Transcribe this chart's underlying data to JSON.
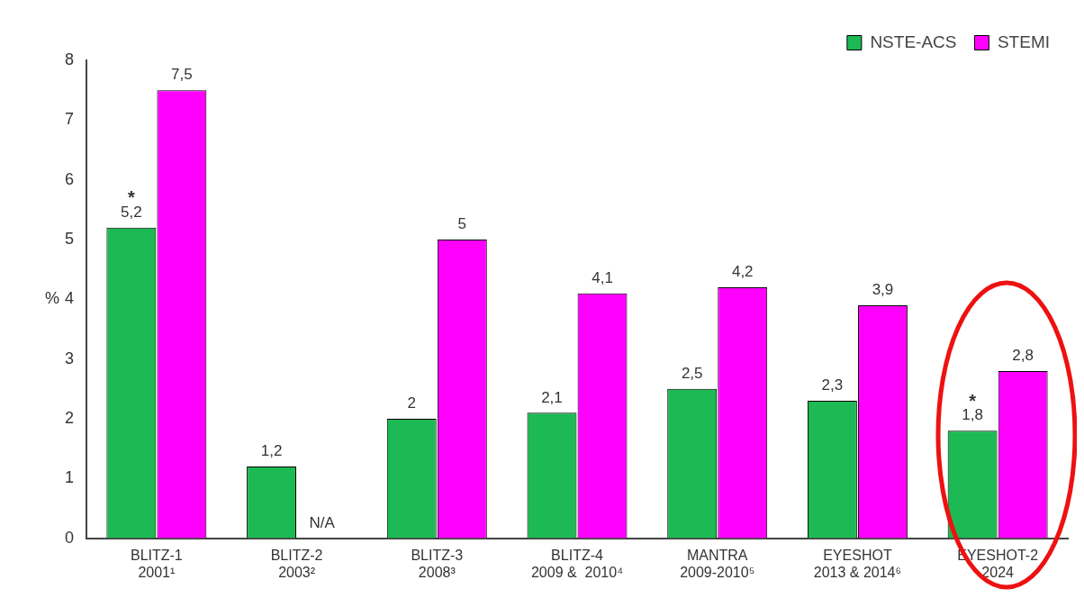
{
  "chart_data": {
    "type": "bar",
    "ylabel": "%",
    "categories": [
      "BLITZ-1\n2001¹",
      "BLITZ-2\n2003²",
      "BLITZ-3\n2008³",
      "BLITZ-4\n2009 &  2010⁴",
      "MANTRA\n2009-2010⁵",
      "EYESHOT\n2013 & 2014⁶",
      "EYESHOT-2\n2024"
    ],
    "series": [
      {
        "name": "NSTE-ACS",
        "color": "#1db954",
        "values": [
          5.2,
          1.2,
          2,
          2.1,
          2.5,
          2.3,
          1.8
        ],
        "value_labels": [
          "5,2",
          "1,2",
          "2",
          "2,1",
          "2,5",
          "2,3",
          "1,8"
        ]
      },
      {
        "name": "STEMI",
        "color": "#ff00ff",
        "values": [
          7.5,
          null,
          5,
          4.1,
          4.2,
          3.9,
          2.8
        ],
        "value_labels": [
          "7,5",
          "N/A",
          "5",
          "4,1",
          "4,2",
          "3,9",
          "2,8"
        ]
      }
    ],
    "ylim": [
      0,
      8
    ],
    "yticks": [
      0,
      1,
      2,
      3,
      4,
      5,
      6,
      7,
      8
    ],
    "grid": false,
    "legend": "top right",
    "annotations": [
      {
        "text": "*",
        "x": "BLITZ-1\n2001¹",
        "y": 5.2
      },
      {
        "text": "*",
        "x": "EYESHOT-2\n2024",
        "y": 1.8
      }
    ]
  }
}
